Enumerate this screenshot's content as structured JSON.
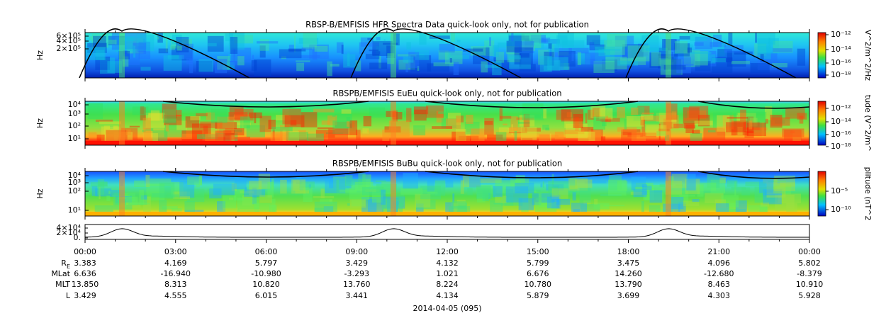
{
  "panels": [
    {
      "title": "RBSP-B/EMFISIS  HFR Spectra Data quick-look only, not for publication",
      "ylabel": "Hz",
      "yticks": [
        "6×10⁵",
        "4×10⁵",
        "2×10⁵"
      ],
      "colorbar": {
        "label": "V^2/m^2/Hz",
        "ticks": [
          "10⁻¹²",
          "10⁻¹⁴",
          "10⁻¹⁶",
          "10⁻¹⁸"
        ]
      }
    },
    {
      "title": "RBSPB/EMFISIS  EuEu quick-look only, not for publication",
      "ylabel": "Hz",
      "yticks": [
        "10⁴",
        "10³",
        "10²",
        "10¹"
      ],
      "colorbar": {
        "label": "tude (V^2/m^",
        "ticks": [
          "10⁻¹²",
          "10⁻¹⁴",
          "10⁻¹⁶",
          "10⁻¹⁸"
        ]
      }
    },
    {
      "title": "RBSPB/EMFISIS  BuBu quick-look only, not for publication",
      "ylabel": "Hz",
      "yticks": [
        "10⁴",
        "10³",
        "10²",
        "10¹"
      ],
      "colorbar": {
        "label": "plitude (nT^2",
        "ticks": [
          "10⁻⁵",
          "10⁻¹⁰"
        ]
      }
    }
  ],
  "line_panel": {
    "yticks": [
      "4×10⁴",
      "2×10⁴",
      "0."
    ]
  },
  "xticks": [
    "00:00",
    "03:00",
    "06:00",
    "09:00",
    "12:00",
    "15:00",
    "18:00",
    "21:00",
    "00:00"
  ],
  "ephemeris": [
    {
      "label": "RE",
      "values": [
        "3.383",
        "4.169",
        "5.797",
        "3.429",
        "4.132",
        "5.799",
        "3.475",
        "4.096",
        "5.802"
      ]
    },
    {
      "label": "MLat",
      "values": [
        "6.636",
        "-16.940",
        "-10.980",
        "-3.293",
        "1.021",
        "6.676",
        "14.260",
        "-12.680",
        "-8.379"
      ]
    },
    {
      "label": "MLT",
      "values": [
        "13.850",
        "8.313",
        "10.820",
        "13.760",
        "8.224",
        "10.780",
        "13.790",
        "8.463",
        "10.910"
      ]
    },
    {
      "label": "L",
      "values": [
        "3.429",
        "4.555",
        "6.015",
        "3.441",
        "4.134",
        "5.879",
        "3.699",
        "4.303",
        "5.928"
      ]
    }
  ],
  "date": "2014-04-05 (095)"
}
